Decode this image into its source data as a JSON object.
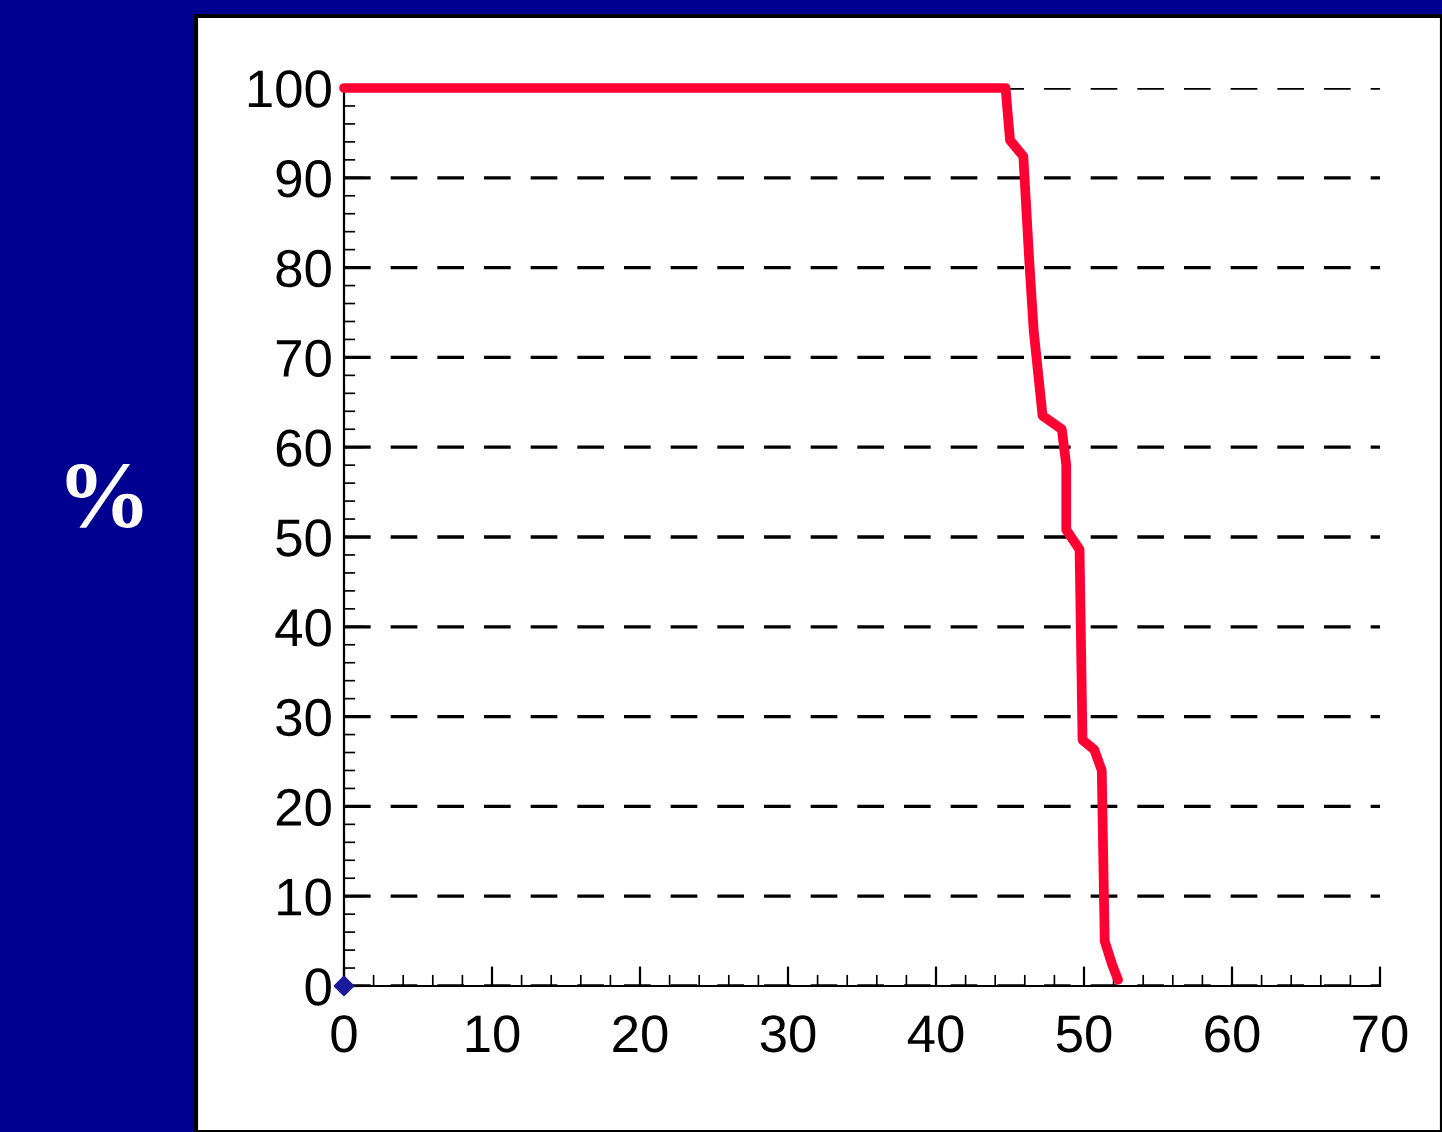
{
  "chart_data": {
    "type": "line",
    "ylabel": "%",
    "xlim": [
      0,
      70
    ],
    "ylim": [
      0,
      100
    ],
    "xticks": [
      0,
      10,
      20,
      30,
      40,
      50,
      60,
      70
    ],
    "yticks": [
      0,
      10,
      20,
      30,
      40,
      50,
      60,
      70,
      80,
      90,
      100
    ],
    "grid": "y",
    "line_style": "solid",
    "marker": "none",
    "series": [
      {
        "color": "#ff0033",
        "x": [
          0,
          44.7,
          45.0,
          45.9,
          46.3,
          46.6,
          47.2,
          48.5,
          48.8,
          48.8,
          49.7,
          49.9,
          50.7,
          51.2,
          51.4,
          51.9,
          52.3
        ],
        "values": [
          100,
          100,
          94.2,
          92.4,
          80.8,
          73,
          63.5,
          62,
          58,
          50.8,
          48.6,
          27.4,
          26.3,
          24,
          5,
          2.4,
          0.7
        ]
      },
      {
        "type": "scatter",
        "marker": "diamond",
        "color": "#1a1a9a",
        "x": [
          0
        ],
        "values": [
          0
        ]
      }
    ]
  }
}
